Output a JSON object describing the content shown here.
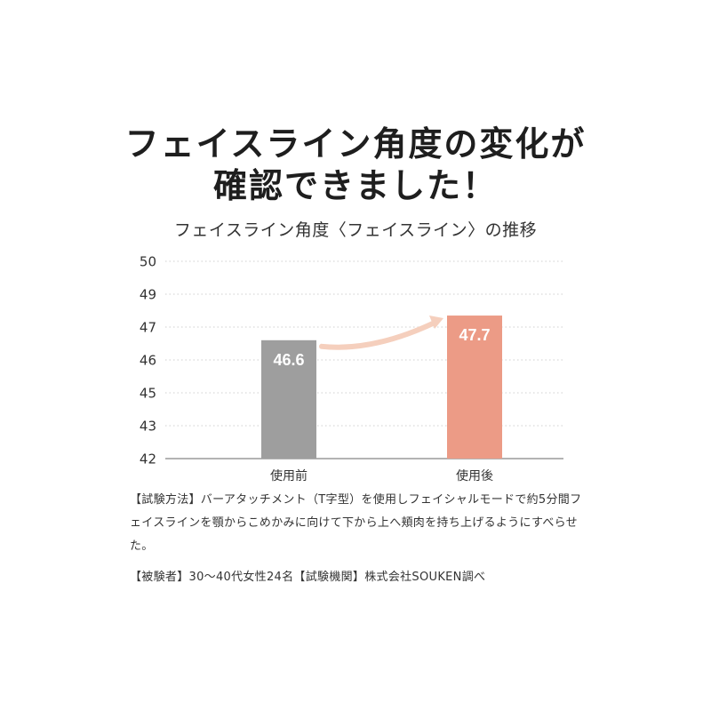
{
  "headline": {
    "line1": "フェイスライン角度の変化が",
    "line2": "確認できました！"
  },
  "chart_data": {
    "type": "bar",
    "title": "フェイスライン角度〈フェイスライン〉の推移",
    "categories": [
      "使用前",
      "使用後"
    ],
    "values": [
      46.6,
      47.7
    ],
    "value_labels": [
      "46.6",
      "47.7"
    ],
    "yticks": [
      "50",
      "49",
      "47",
      "46",
      "45",
      "43",
      "42"
    ],
    "bar_colors": [
      "#9e9e9e",
      "#ec9b86"
    ],
    "arrow_color": "#f5cfbd",
    "grid": true,
    "xlabel": "",
    "ylabel": ""
  },
  "notes": {
    "method": "【試験方法】バーアタッチメント（T字型）を使用しフェイシャルモードで約5分間フェイスラインを顎からこめかみに向けて下から上へ頬肉を持ち上げるようにすべらせた。",
    "subjects": "【被験者】30〜40代女性24名【試験機関】株式会社SOUKEN調べ"
  }
}
